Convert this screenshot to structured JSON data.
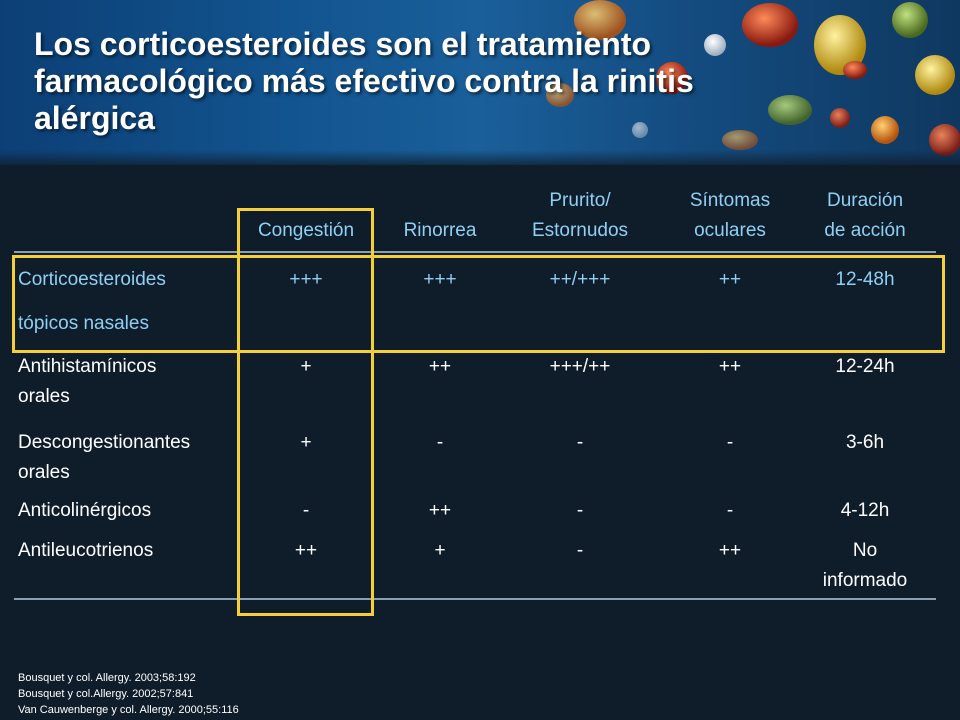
{
  "title": "Los corticoesteroides son el tratamiento farmacológico más efectivo contra la rinitis alérgica",
  "table": {
    "headers": [
      {
        "line1": "",
        "line2": "Congestión"
      },
      {
        "line1": "",
        "line2": "Rinorrea"
      },
      {
        "line1": "Prurito/",
        "line2": "Estornudos"
      },
      {
        "line1": "Síntomas",
        "line2": "oculares"
      },
      {
        "line1": "Duración",
        "line2": "de acción"
      }
    ],
    "rows": [
      {
        "label1": "Corticoesteroides",
        "label2": "tópicos nasales",
        "cells": [
          "+++",
          "+++",
          "++/+++",
          "++",
          "12-48h"
        ],
        "cells2": [
          "",
          "",
          "",
          "",
          ""
        ]
      },
      {
        "label1": "Antihistamínicos",
        "label2": "orales",
        "cells": [
          "+",
          "++",
          "+++/++",
          "++",
          "12-24h"
        ],
        "cells2": [
          "",
          "",
          "",
          "",
          ""
        ]
      },
      {
        "label1": "Descongestionantes",
        "label2": "orales",
        "cells": [
          "+",
          "-",
          "-",
          "-",
          "3-6h"
        ],
        "cells2": [
          "",
          "",
          "",
          "",
          ""
        ]
      },
      {
        "label1": "Anticolinérgicos",
        "label2": "",
        "cells": [
          "-",
          "++",
          "-",
          "-",
          "4-12h"
        ],
        "cells2": [
          "",
          "",
          "",
          "",
          ""
        ]
      },
      {
        "label1": "Antileucotrienos",
        "label2": "",
        "cells": [
          "++",
          "+",
          "-",
          "++",
          "No"
        ],
        "cells2": [
          "",
          "",
          "",
          "",
          "informado"
        ]
      }
    ]
  },
  "references": [
    "Bousquet y col. Allergy. 2003;58:192",
    "Bousquet y col.Allergy. 2002;57:841",
    "Van Cauwenberge y col. Allergy. 2000;55:116"
  ],
  "colors": {
    "highlight": "#f5cf3a",
    "header_text": "#8ed0f4",
    "background": "#0f1d2b"
  }
}
